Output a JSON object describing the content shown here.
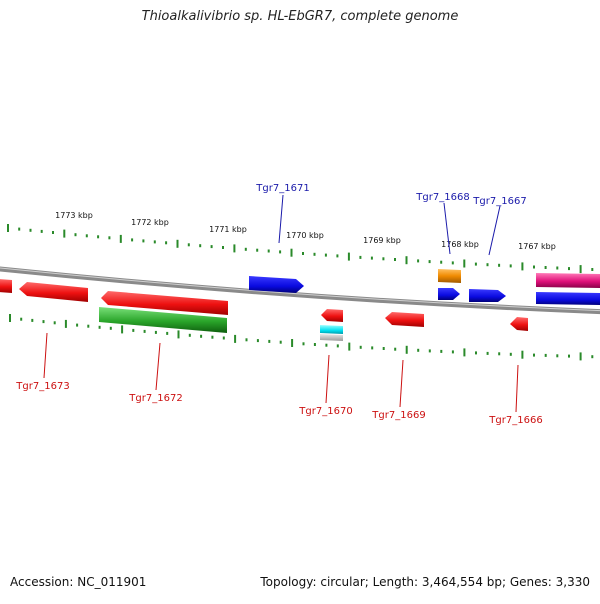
{
  "title": "Thioalkalivibrio sp. HL-EbGR7, complete genome",
  "footer": {
    "accession": "Accession: NC_011901",
    "topology": "Topology: circular; Length: 3,464,554 bp; Genes: 3,330"
  },
  "scale_labels": [
    "1773 kbp",
    "1772 kbp",
    "1771 kbp",
    "1770 kbp",
    "1769 kbp",
    "1768 kbp",
    "1767 kbp"
  ],
  "gene_labels": {
    "forward": [
      "Tgr7_1671",
      "Tgr7_1668",
      "Tgr7_1667"
    ],
    "reverse": [
      "Tgr7_1673",
      "Tgr7_1672",
      "Tgr7_1670",
      "Tgr7_1669",
      "Tgr7_1666"
    ]
  },
  "colors": {
    "forward_label": "#1a1aaa",
    "reverse_label": "#cc1111",
    "tick": "#2a8a2a",
    "backbone": "#888888",
    "red": "#ee1111",
    "blue": "#0a0ae0",
    "green": "#2aa52a",
    "orange": "#f08a00",
    "magenta": "#e0107a",
    "cyan": "#00e0f0",
    "gray": "#bbbbbb"
  }
}
